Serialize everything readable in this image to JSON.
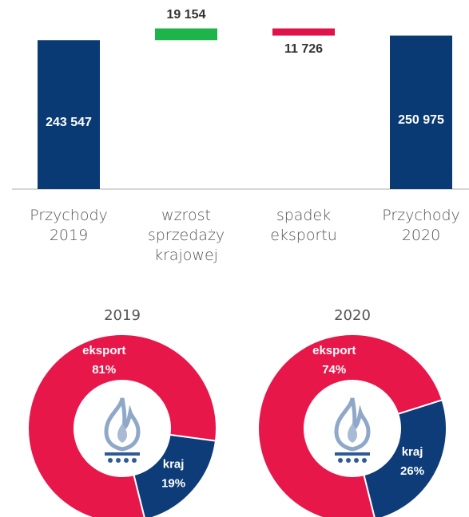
{
  "chart_data": [
    {
      "type": "waterfall",
      "categories": [
        "Przychody 2019",
        "wzrost sprzedaży krajowej",
        "spadek eksportu",
        "Przychody 2020"
      ],
      "values": [
        243547,
        19154,
        -11726,
        250975
      ],
      "value_labels": [
        "243 547",
        "19 154",
        "11 726",
        "250 975"
      ],
      "kinds": [
        "total",
        "delta",
        "delta",
        "total"
      ],
      "colors": [
        "#0a3a74",
        "#1db44c",
        "#e0124a",
        "#0a3a74"
      ],
      "ylim": [
        0,
        270000
      ]
    },
    {
      "type": "pie",
      "title": "2019",
      "categories": [
        "eksport",
        "kraj"
      ],
      "values": [
        81,
        19
      ],
      "value_labels": [
        "81%",
        "19%"
      ],
      "colors": [
        "#e8174a",
        "#0d3c78"
      ]
    },
    {
      "type": "pie",
      "title": "2020",
      "categories": [
        "eksport",
        "kraj"
      ],
      "values": [
        74,
        26
      ],
      "value_labels": [
        "74%",
        "26%"
      ],
      "colors": [
        "#e8174a",
        "#0d3c78"
      ]
    }
  ]
}
